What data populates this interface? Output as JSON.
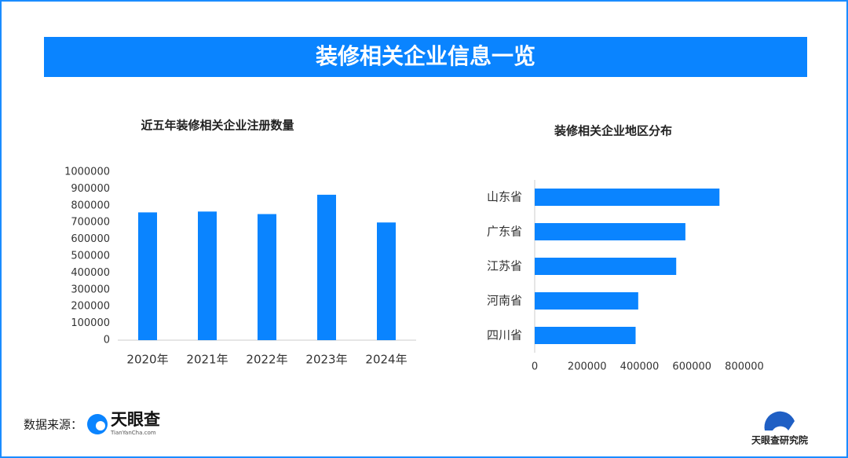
{
  "header": {
    "title": "装修相关企业信息一览"
  },
  "chart_data": [
    {
      "type": "bar",
      "title": "近五年装修相关企业注册数量",
      "categories": [
        "2020年",
        "2021年",
        "2022年",
        "2023年",
        "2024年"
      ],
      "values": [
        760000,
        765000,
        750000,
        865000,
        700000
      ],
      "color": "#0a84ff",
      "ylim": [
        0,
        1000000
      ],
      "yticks": [
        0,
        100000,
        200000,
        300000,
        400000,
        500000,
        600000,
        700000,
        800000,
        900000,
        1000000
      ],
      "grid": false
    },
    {
      "type": "bar",
      "orientation": "horizontal",
      "title": "装修相关企业地区分布",
      "categories": [
        "山东省",
        "广东省",
        "江苏省",
        "河南省",
        "四川省"
      ],
      "values": [
        705000,
        575000,
        540000,
        395000,
        385000
      ],
      "color": "#0a84ff",
      "xlim": [
        0,
        800000
      ],
      "xticks": [
        0,
        200000,
        400000,
        600000,
        800000
      ],
      "grid": false
    }
  ],
  "footer": {
    "source_label": "数据来源：",
    "logo_name": "天眼查",
    "logo_url": "TianYanCha.com",
    "institute": "天眼查研究院"
  }
}
